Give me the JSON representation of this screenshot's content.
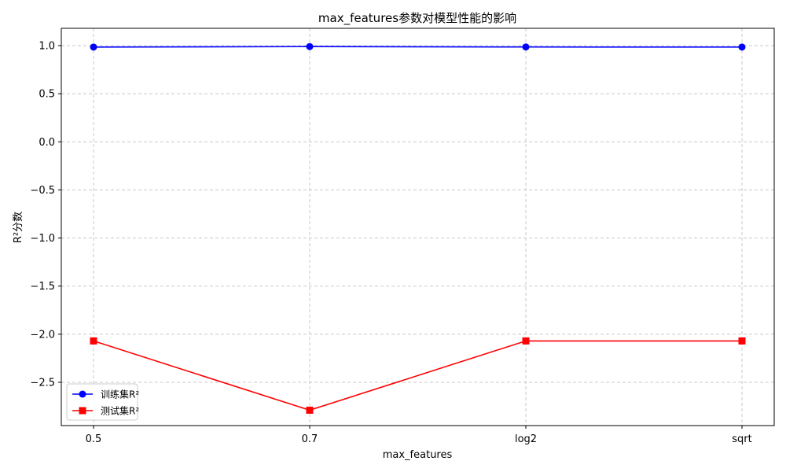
{
  "chart_data": {
    "type": "line",
    "title": "max_features参数对模型性能的影响",
    "xlabel": "max_features",
    "ylabel": "R²分数",
    "categories": [
      "0.5",
      "0.7",
      "log2",
      "sqrt"
    ],
    "ylim": [
      -2.95,
      1.18
    ],
    "yticks": [
      1.0,
      0.5,
      0.0,
      -0.5,
      -1.0,
      -1.5,
      -2.0,
      -2.5
    ],
    "ytick_labels": [
      "1.0",
      "0.5",
      "0.0",
      "−0.5",
      "−1.0",
      "−1.5",
      "−2.0",
      "−2.5"
    ],
    "grid": true,
    "legend_position": "lower-left",
    "series": [
      {
        "name": "训练集R²",
        "values": [
          0.985,
          0.99,
          0.986,
          0.985
        ],
        "color": "#0000ff",
        "marker": "circle"
      },
      {
        "name": "测试集R²",
        "values": [
          -2.07,
          -2.79,
          -2.07,
          -2.07
        ],
        "color": "#ff0000",
        "marker": "square"
      }
    ]
  }
}
